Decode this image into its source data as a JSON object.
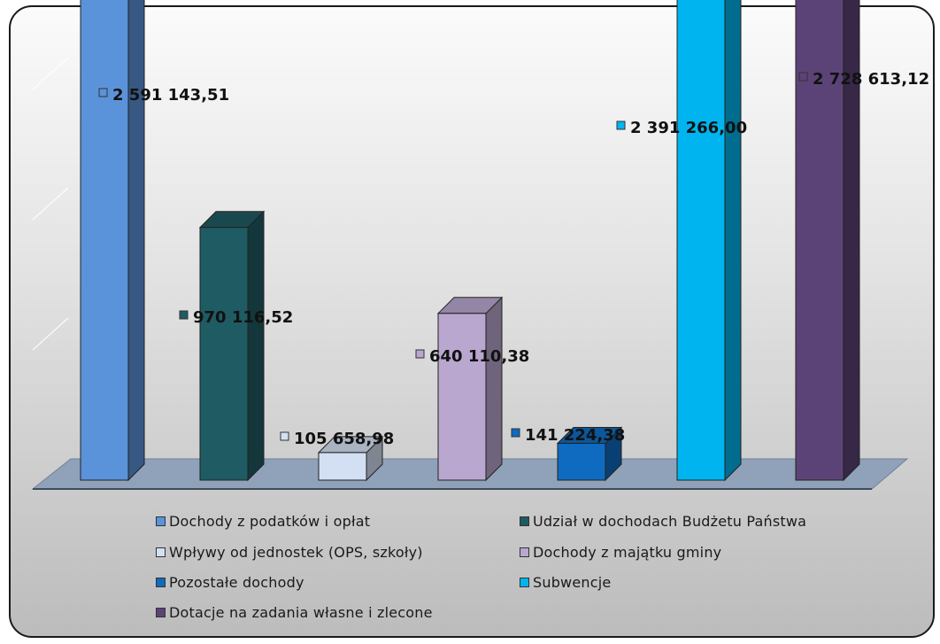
{
  "chart_data": {
    "type": "bar",
    "title": "",
    "xlabel": "",
    "ylabel": "",
    "ylim": [
      0,
      3000000
    ],
    "grid": true,
    "legend_position": "bottom",
    "categories": [
      "Dochody z podatków i opłat",
      "Udział w dochodach Budżetu Państwa",
      "Wpływy od jednostek (OPS, szkoły)",
      "Dochody z majątku gminy",
      "Pozostałe dochody",
      "Subwencje",
      "Dotacje na zadania własne i zlecone"
    ],
    "series": [
      {
        "name": "Dochody z podatków i opłat",
        "value": 2591143.51,
        "label": "2 591 143,51",
        "color": "#5b93da"
      },
      {
        "name": "Udział w dochodach Budżetu Państwa",
        "value": 970116.52,
        "label": "970 116,52",
        "color": "#1f5b63"
      },
      {
        "name": "Wpływy od jednostek (OPS, szkoły)",
        "value": 105658.98,
        "label": "105 658,98",
        "color": "#d3e0f3"
      },
      {
        "name": "Dochody z majątku gminy",
        "value": 640110.38,
        "label": "640 110,38",
        "color": "#b9a7cf"
      },
      {
        "name": "Pozostałe dochody",
        "value": 141224.38,
        "label": "141 224,38",
        "color": "#0f6bbf"
      },
      {
        "name": "Subwencje",
        "value": 2391266.0,
        "label": "2 391 266,00",
        "color": "#00b5ef"
      },
      {
        "name": "Dotacje na zadania własne i zlecone",
        "value": 2728613.12,
        "label": "2 728 613,12",
        "color": "#5c4377"
      }
    ]
  }
}
